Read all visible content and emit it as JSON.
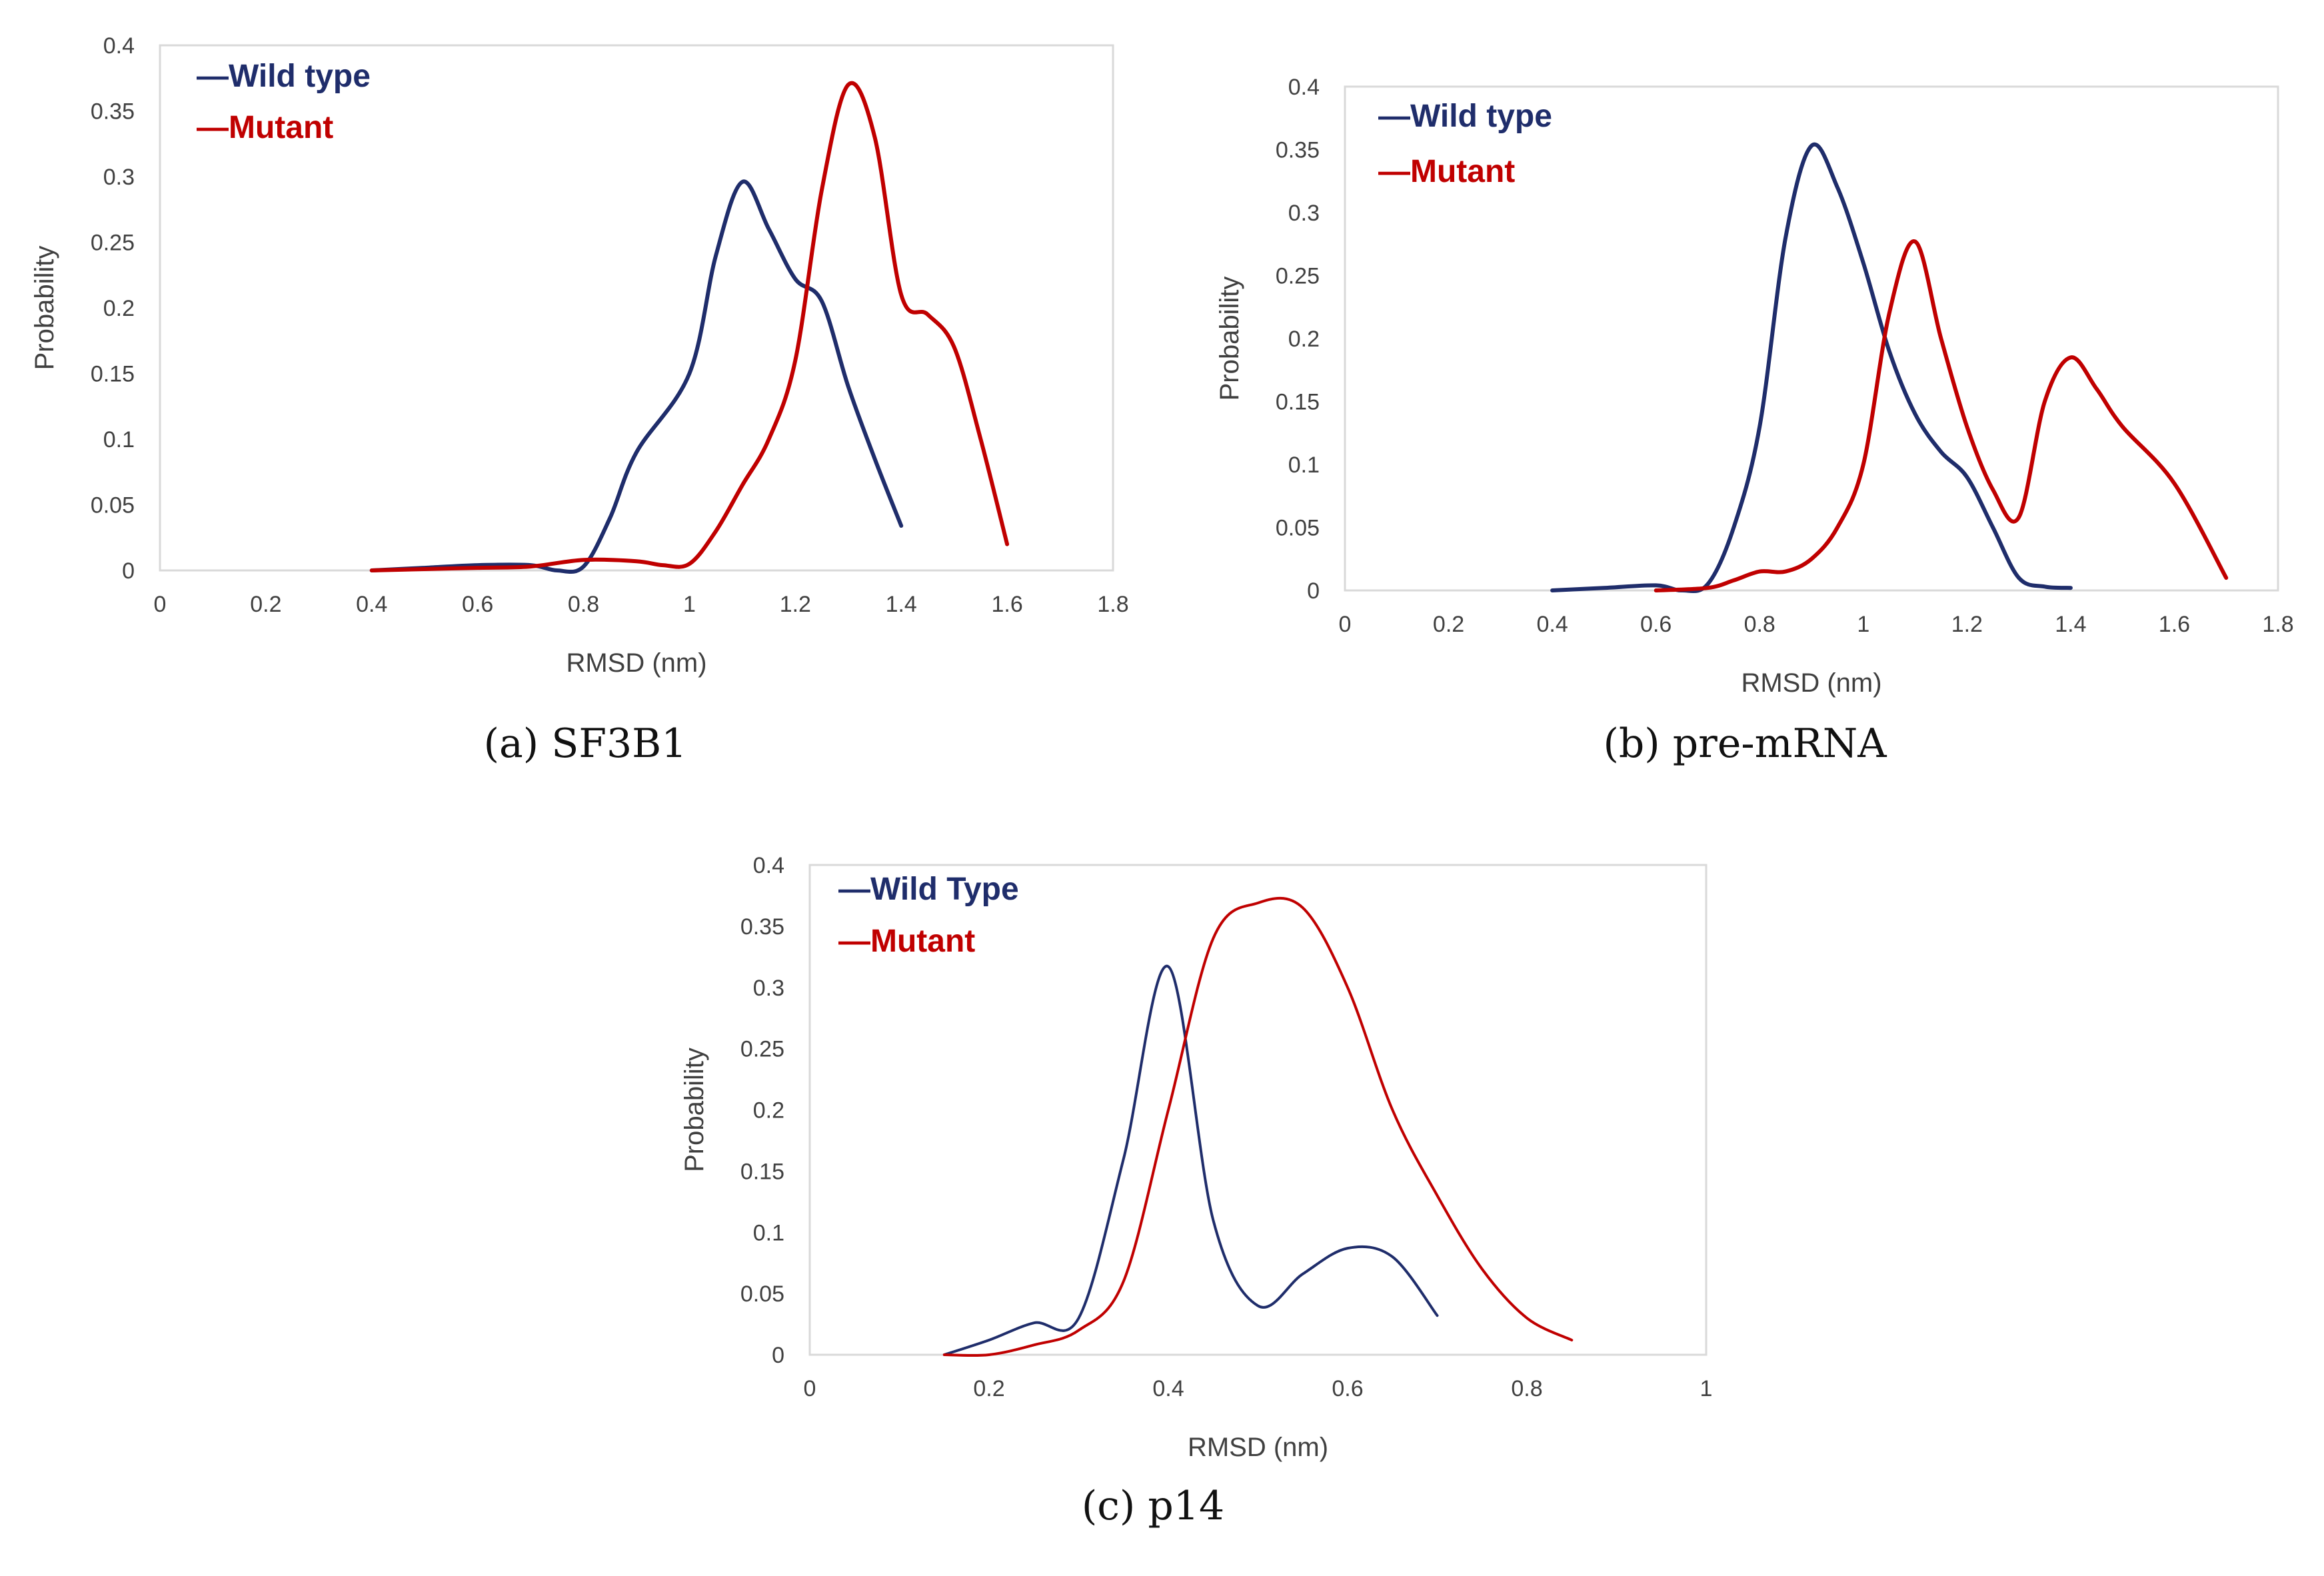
{
  "colors": {
    "wild": "#1f2d6b",
    "mutant": "#c00000"
  },
  "chart_data": [
    {
      "type": "line",
      "caption": "(a) SF3B1",
      "xlabel": "RMSD (nm)",
      "ylabel": "Probability",
      "xlim": [
        0,
        1.8
      ],
      "ylim": [
        0,
        0.4
      ],
      "xticks": [
        "0",
        "0.2",
        "0.4",
        "0.6",
        "0.8",
        "1",
        "1.2",
        "1.4",
        "1.6",
        "1.8"
      ],
      "yticks": [
        "0",
        "0.05",
        "0.1",
        "0.15",
        "0.2",
        "0.25",
        "0.3",
        "0.35",
        "0.4"
      ],
      "legend": {
        "position": "top-left",
        "marker": "—"
      },
      "series": [
        {
          "name": "Wild type",
          "color_key": "wild",
          "x": [
            0.4,
            0.5,
            0.6,
            0.7,
            0.75,
            0.8,
            0.85,
            0.9,
            1.0,
            1.05,
            1.1,
            1.15,
            1.2,
            1.25,
            1.3,
            1.35,
            1.4
          ],
          "y": [
            0.0,
            0.002,
            0.004,
            0.004,
            0.0,
            0.003,
            0.04,
            0.09,
            0.15,
            0.24,
            0.296,
            0.26,
            0.222,
            0.205,
            0.14,
            0.085,
            0.034
          ]
        },
        {
          "name": "Mutant",
          "color_key": "mutant",
          "x": [
            0.4,
            0.5,
            0.6,
            0.7,
            0.8,
            0.9,
            0.95,
            1.0,
            1.05,
            1.1,
            1.15,
            1.2,
            1.25,
            1.3,
            1.35,
            1.4,
            1.45,
            1.5,
            1.55,
            1.6
          ],
          "y": [
            0.0,
            0.001,
            0.002,
            0.003,
            0.008,
            0.007,
            0.004,
            0.005,
            0.03,
            0.065,
            0.1,
            0.16,
            0.29,
            0.37,
            0.33,
            0.21,
            0.195,
            0.17,
            0.1,
            0.02
          ]
        }
      ]
    },
    {
      "type": "line",
      "caption": "(b) pre-mRNA",
      "xlabel": "RMSD (nm)",
      "ylabel": "Probability",
      "xlim": [
        0,
        1.8
      ],
      "ylim": [
        0,
        0.4
      ],
      "xticks": [
        "0",
        "0.2",
        "0.4",
        "0.6",
        "0.8",
        "1",
        "1.2",
        "1.4",
        "1.6",
        "1.8"
      ],
      "yticks": [
        "0",
        "0.05",
        "0.1",
        "0.15",
        "0.2",
        "0.25",
        "0.3",
        "0.35",
        "0.4"
      ],
      "legend": {
        "position": "top-left",
        "marker": "—"
      },
      "series": [
        {
          "name": "Wild type",
          "color_key": "wild",
          "x": [
            0.4,
            0.5,
            0.6,
            0.65,
            0.7,
            0.75,
            0.8,
            0.85,
            0.9,
            0.95,
            1.0,
            1.05,
            1.1,
            1.15,
            1.2,
            1.25,
            1.3,
            1.35,
            1.4
          ],
          "y": [
            0.0,
            0.002,
            0.004,
            0.0,
            0.005,
            0.05,
            0.13,
            0.28,
            0.353,
            0.32,
            0.26,
            0.19,
            0.14,
            0.11,
            0.09,
            0.05,
            0.01,
            0.003,
            0.002
          ]
        },
        {
          "name": "Mutant",
          "color_key": "mutant",
          "x": [
            0.6,
            0.7,
            0.75,
            0.8,
            0.85,
            0.9,
            0.95,
            1.0,
            1.05,
            1.1,
            1.15,
            1.2,
            1.25,
            1.3,
            1.35,
            1.4,
            1.45,
            1.5,
            1.6,
            1.7
          ],
          "y": [
            0.0,
            0.002,
            0.008,
            0.015,
            0.015,
            0.025,
            0.05,
            0.1,
            0.22,
            0.277,
            0.2,
            0.13,
            0.08,
            0.058,
            0.15,
            0.185,
            0.16,
            0.13,
            0.085,
            0.01
          ]
        }
      ]
    },
    {
      "type": "line",
      "caption": "(c) p14",
      "xlabel": "RMSD (nm)",
      "ylabel": "Probability",
      "xlim": [
        0,
        1
      ],
      "ylim": [
        0,
        0.4
      ],
      "xticks": [
        "0",
        "0.2",
        "0.4",
        "0.6",
        "0.8",
        "1"
      ],
      "yticks": [
        "0",
        "0.05",
        "0.1",
        "0.15",
        "0.2",
        "0.25",
        "0.3",
        "0.35",
        "0.4"
      ],
      "legend": {
        "position": "top-left",
        "marker": "—"
      },
      "series": [
        {
          "name": "Wild Type",
          "color_key": "wild",
          "x": [
            0.15,
            0.2,
            0.25,
            0.3,
            0.35,
            0.4,
            0.45,
            0.5,
            0.55,
            0.6,
            0.65,
            0.7
          ],
          "y": [
            0.0,
            0.012,
            0.026,
            0.03,
            0.16,
            0.317,
            0.11,
            0.04,
            0.066,
            0.087,
            0.08,
            0.032
          ]
        },
        {
          "name": "Mutant",
          "color_key": "mutant",
          "x": [
            0.15,
            0.2,
            0.25,
            0.3,
            0.35,
            0.4,
            0.45,
            0.5,
            0.55,
            0.6,
            0.65,
            0.7,
            0.75,
            0.8,
            0.85
          ],
          "y": [
            0.0,
            0.0,
            0.008,
            0.02,
            0.06,
            0.2,
            0.34,
            0.369,
            0.365,
            0.3,
            0.2,
            0.13,
            0.07,
            0.03,
            0.012
          ]
        }
      ]
    }
  ]
}
